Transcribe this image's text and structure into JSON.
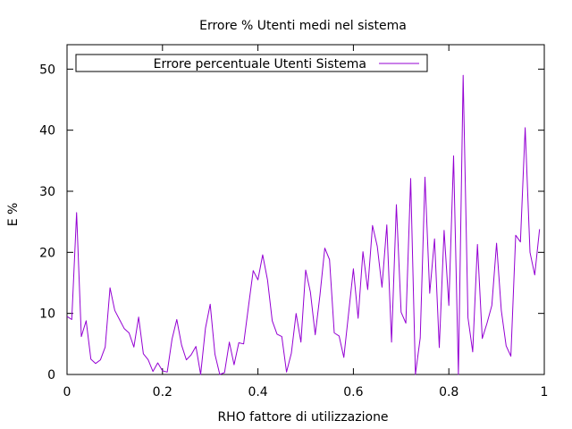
{
  "chart_data": {
    "type": "line",
    "title": "Errore % Utenti medi nel sistema",
    "xlabel": "RHO fattore di utilizzazione",
    "ylabel": "E %",
    "xlim": [
      0,
      1
    ],
    "ylim": [
      0,
      54
    ],
    "x_ticks": [
      "0",
      "0.2",
      "0.4",
      "0.6",
      "0.8",
      "1"
    ],
    "y_ticks": [
      "0",
      "10",
      "20",
      "30",
      "40",
      "50"
    ],
    "grid": false,
    "legend_position": "top-left",
    "series": [
      {
        "name": "Errore percentuale Utenti Sistema",
        "color": "#9400d3",
        "x": [
          0.0,
          0.01,
          0.02,
          0.03,
          0.04,
          0.05,
          0.06,
          0.07,
          0.08,
          0.09,
          0.1,
          0.11,
          0.12,
          0.13,
          0.14,
          0.15,
          0.16,
          0.17,
          0.18,
          0.19,
          0.2,
          0.21,
          0.22,
          0.23,
          0.24,
          0.25,
          0.26,
          0.27,
          0.28,
          0.29,
          0.3,
          0.31,
          0.32,
          0.33,
          0.34,
          0.35,
          0.36,
          0.37,
          0.38,
          0.39,
          0.4,
          0.41,
          0.42,
          0.43,
          0.44,
          0.45,
          0.46,
          0.47,
          0.48,
          0.49,
          0.5,
          0.51,
          0.52,
          0.53,
          0.54,
          0.55,
          0.56,
          0.57,
          0.58,
          0.59,
          0.6,
          0.61,
          0.62,
          0.63,
          0.64,
          0.65,
          0.66,
          0.67,
          0.68,
          0.69,
          0.7,
          0.71,
          0.72,
          0.73,
          0.74,
          0.75,
          0.76,
          0.77,
          0.78,
          0.79,
          0.8,
          0.81,
          0.82,
          0.83,
          0.84,
          0.85,
          0.86,
          0.87,
          0.88,
          0.89,
          0.9,
          0.91,
          0.92,
          0.93,
          0.94,
          0.95,
          0.96,
          0.97,
          0.98,
          0.99
        ],
        "values": [
          9.5,
          9.0,
          26.5,
          6.2,
          8.8,
          2.5,
          1.8,
          2.4,
          4.5,
          14.2,
          10.5,
          9.0,
          7.5,
          6.8,
          4.5,
          9.4,
          3.4,
          2.4,
          0.5,
          1.9,
          0.6,
          0.4,
          5.8,
          9.0,
          4.8,
          2.4,
          3.2,
          4.6,
          0.0,
          7.6,
          11.5,
          3.3,
          0.0,
          0.3,
          5.3,
          1.6,
          5.2,
          5.0,
          11.0,
          17.0,
          15.5,
          19.6,
          15.5,
          8.8,
          6.6,
          6.2,
          0.4,
          3.5,
          10.0,
          5.3,
          17.1,
          13.5,
          6.5,
          13.0,
          20.7,
          18.8,
          6.8,
          6.3,
          2.8,
          10.1,
          17.3,
          9.2,
          20.1,
          13.9,
          24.4,
          21.0,
          14.3,
          24.5,
          5.3,
          27.8,
          10.2,
          8.4,
          32.1,
          0.0,
          6.0,
          32.3,
          13.3,
          22.2,
          4.4,
          23.6,
          11.3,
          35.8,
          0.0,
          49.0,
          9.3,
          3.7,
          21.3,
          5.9,
          8.4,
          11.3,
          21.5,
          10.5,
          4.7,
          3.0,
          22.8,
          21.7,
          40.4,
          20.0,
          16.3,
          23.8
        ]
      }
    ]
  }
}
